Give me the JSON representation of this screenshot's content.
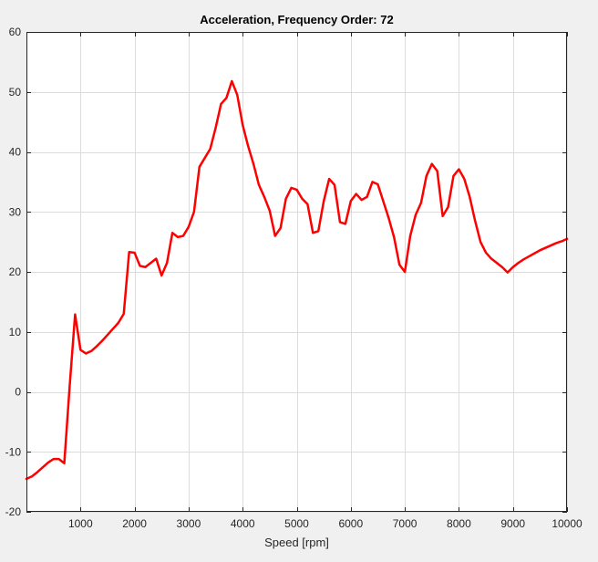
{
  "chart_data": {
    "type": "line",
    "title": "Acceleration, Frequency Order: 72",
    "xlabel": "Speed [rpm]",
    "ylabel": "",
    "xlim": [
      0,
      10000
    ],
    "ylim": [
      -20,
      60
    ],
    "xticks": [
      1000,
      2000,
      3000,
      4000,
      5000,
      6000,
      7000,
      8000,
      9000,
      10000
    ],
    "yticks": [
      -20,
      -10,
      0,
      10,
      20,
      30,
      40,
      50,
      60
    ],
    "grid": true,
    "legend": "none",
    "series": [
      {
        "color": "#ff0000",
        "x": [
          0,
          100,
          200,
          300,
          400,
          500,
          600,
          700,
          800,
          900,
          1000,
          1100,
          1200,
          1300,
          1400,
          1500,
          1600,
          1700,
          1800,
          1900,
          2000,
          2100,
          2200,
          2300,
          2400,
          2500,
          2600,
          2700,
          2800,
          2900,
          3000,
          3100,
          3200,
          3300,
          3400,
          3500,
          3600,
          3700,
          3800,
          3900,
          4000,
          4100,
          4200,
          4300,
          4400,
          4500,
          4600,
          4700,
          4800,
          4900,
          5000,
          5100,
          5200,
          5300,
          5400,
          5500,
          5600,
          5700,
          5800,
          5900,
          6000,
          6100,
          6200,
          6300,
          6400,
          6500,
          6600,
          6700,
          6800,
          6900,
          7000,
          7100,
          7200,
          7300,
          7400,
          7500,
          7600,
          7700,
          7800,
          7900,
          8000,
          8100,
          8200,
          8300,
          8400,
          8500,
          8600,
          8700,
          8800,
          8900,
          9000,
          9100,
          9200,
          9300,
          9400,
          9500,
          9600,
          9700,
          9800,
          9900,
          10000
        ],
        "y": [
          -14.5,
          -14.1,
          -13.4,
          -12.6,
          -11.8,
          -11.2,
          -11.2,
          -11.9,
          1.0,
          12.9,
          7.0,
          6.4,
          6.8,
          7.6,
          8.5,
          9.5,
          10.5,
          11.5,
          13.0,
          23.3,
          23.2,
          21.0,
          20.8,
          21.5,
          22.2,
          19.4,
          21.5,
          26.5,
          25.8,
          26.0,
          27.5,
          30.0,
          37.5,
          39.0,
          40.5,
          44.0,
          48.0,
          49.0,
          51.8,
          49.5,
          44.5,
          41.0,
          38.0,
          34.5,
          32.5,
          30.2,
          26.0,
          27.3,
          32.2,
          34.0,
          33.7,
          32.2,
          31.3,
          26.5,
          26.8,
          31.8,
          35.5,
          34.5,
          28.3,
          28.0,
          31.8,
          33.0,
          32.0,
          32.5,
          35.0,
          34.6,
          31.8,
          29.0,
          25.8,
          21.2,
          20.0,
          26.0,
          29.5,
          31.5,
          36.0,
          38.0,
          36.8,
          29.3,
          30.8,
          36.0,
          37.1,
          35.5,
          32.5,
          28.5,
          25.0,
          23.2,
          22.2,
          21.5,
          20.8,
          19.9,
          20.8,
          21.5,
          22.1,
          22.6,
          23.1,
          23.6,
          24.0,
          24.4,
          24.8,
          25.1,
          25.5
        ]
      }
    ]
  }
}
